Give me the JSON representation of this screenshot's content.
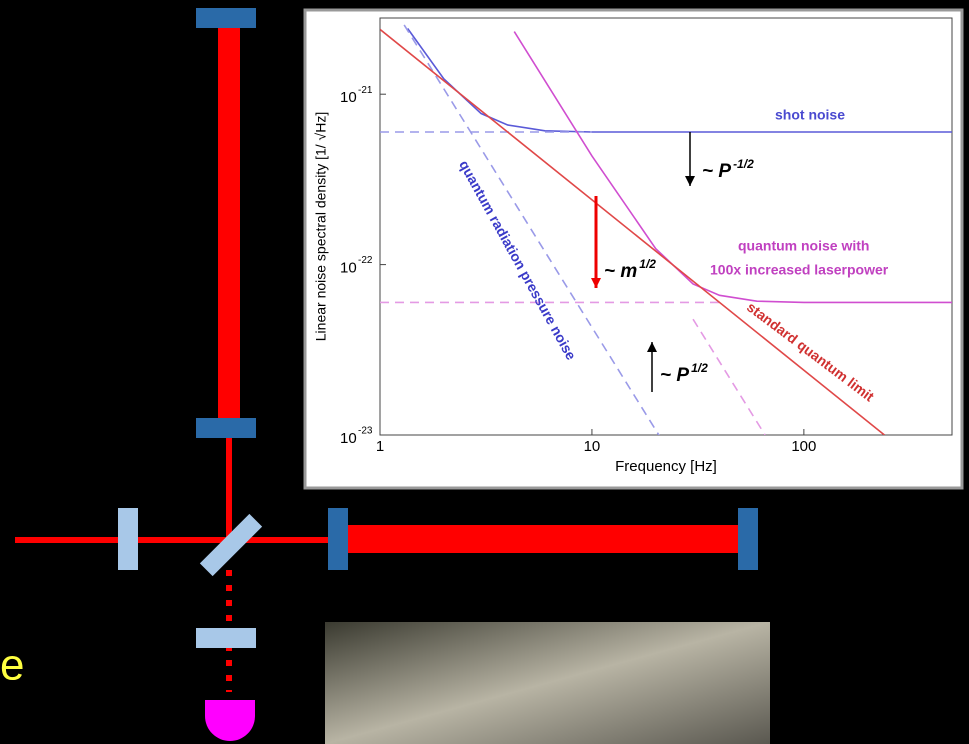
{
  "slide_text": "e",
  "chart_data": {
    "type": "line",
    "xlabel": "Frequency  [Hz]",
    "ylabel": "Linear noise spectral density  [1/ √Hz]",
    "xscale": "log",
    "yscale": "log",
    "xlim": [
      1,
      500
    ],
    "ylim": [
      1e-23,
      2.8e-21
    ],
    "xticks": [
      1,
      10,
      100
    ],
    "yticks": [
      {
        "value": 1e-23,
        "label": "10",
        "exponent": "-23"
      },
      {
        "value": 1e-22,
        "label": "10",
        "exponent": "-22"
      },
      {
        "value": 1e-21,
        "label": "10",
        "exponent": "-21"
      }
    ],
    "series": [
      {
        "color": "#5a5ad8",
        "dash": false,
        "x": [
          1.35,
          2,
          3,
          4,
          6,
          10,
          20,
          100,
          500
        ],
        "values": [
          2.43e-21,
          1.23e-21,
          7.7e-22,
          6.6e-22,
          6.1e-22,
          6e-22,
          6e-22,
          6e-22,
          6e-22
        ]
      },
      {
        "color": "#9a9ae8",
        "dash": true,
        "x": [
          1,
          10
        ],
        "values": [
          6e-22,
          6e-22
        ]
      },
      {
        "color": "#9a9ae8",
        "dash": true,
        "x": [
          1.3,
          21
        ],
        "values": [
          2.55e-21,
          9.7e-24
        ]
      },
      {
        "color": "#d04ed0",
        "dash": false,
        "x": [
          4.3,
          10,
          20,
          30,
          40,
          60,
          100,
          500
        ],
        "values": [
          2.33e-21,
          4.34e-22,
          1.24e-22,
          7.7e-23,
          6.6e-23,
          6.1e-23,
          6e-23,
          6e-23
        ]
      },
      {
        "color": "#e49ae4",
        "dash": true,
        "x": [
          1,
          40
        ],
        "values": [
          6e-23,
          6e-23
        ]
      },
      {
        "color": "#e49ae4",
        "dash": true,
        "x": [
          30,
          65.6
        ],
        "values": [
          4.78e-23,
          1e-23
        ]
      },
      {
        "color": "#e04848",
        "dash": false,
        "x": [
          1,
          240
        ],
        "values": [
          2.4e-21,
          1e-23
        ]
      }
    ],
    "annotations": [
      {
        "text": "shot noise",
        "color": "#4a4ad0"
      },
      {
        "text": "~ P",
        "sup": "-1/2",
        "color": "#000"
      },
      {
        "text": "~ m",
        "sup": "1/2",
        "color": "#000"
      },
      {
        "text": "~ P",
        "sup": "1/2",
        "color": "#000"
      },
      {
        "text": "quantum radiation pressure noise",
        "color": "#3a3ac8"
      },
      {
        "text": "quantum noise with",
        "color": "#c040c0"
      },
      {
        "text": "100x increased laserpower",
        "color": "#c040c0"
      },
      {
        "text": "standard quantum limit",
        "color": "#d03030"
      }
    ]
  }
}
